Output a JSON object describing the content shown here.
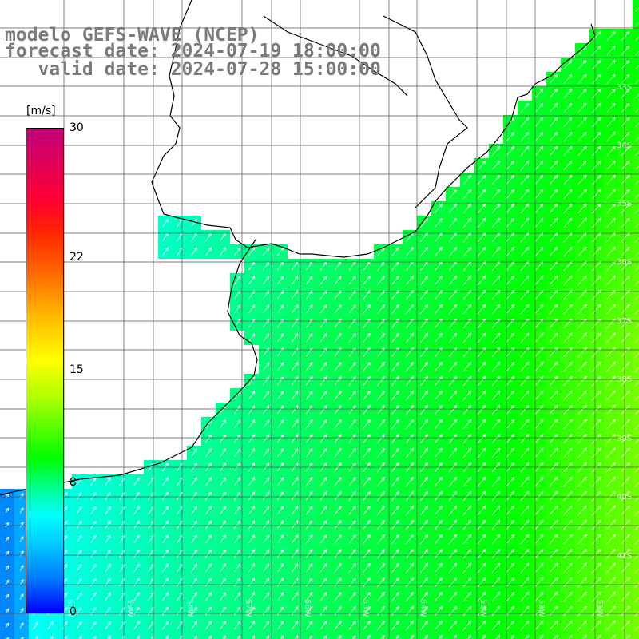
{
  "title": {
    "line1": "modelo GEFS-WAVE (NCEP)",
    "line2": "forecast date: 2024-07-19 18:00:00",
    "line3": "   valid date: 2024-07-28 15:00:00"
  },
  "colorbar": {
    "unit": "[m/s]",
    "ticks": [
      {
        "label": "30",
        "value": 30
      },
      {
        "label": "22",
        "value": 22
      },
      {
        "label": "15",
        "value": 15
      },
      {
        "label": "8",
        "value": 8
      },
      {
        "label": "0",
        "value": 0
      }
    ],
    "max": 30,
    "min": 0
  },
  "map": {
    "lon_labels": [
      "60W",
      "59W",
      "58W",
      "57W",
      "56W",
      "55W",
      "54W",
      "53W",
      "52W",
      "51W"
    ],
    "lat_labels": [
      "33S",
      "34S",
      "35S",
      "36S",
      "37S",
      "38S",
      "39S",
      "40S",
      "41S"
    ],
    "wind_direction": "northeast-bound"
  }
}
